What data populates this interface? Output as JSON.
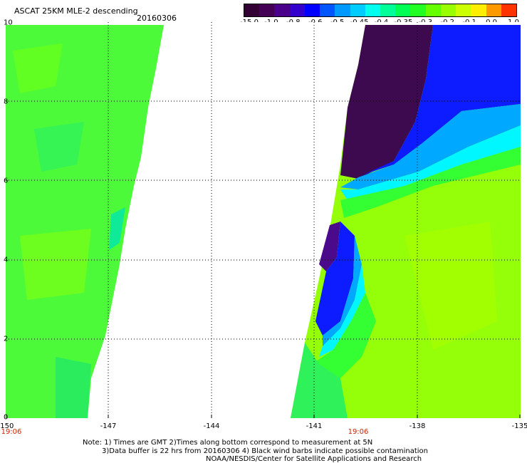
{
  "header": {
    "title": "ASCAT 25KM MLE-2 descending",
    "date": "20160306"
  },
  "colorbar": {
    "colors": [
      "#330033",
      "#440055",
      "#4a0088",
      "#3300cc",
      "#0000ff",
      "#0055ff",
      "#0099ff",
      "#00ccff",
      "#00ffee",
      "#00ff99",
      "#00ff55",
      "#22ff22",
      "#66ff00",
      "#99ff00",
      "#ccff00",
      "#ffee00",
      "#ff9900",
      "#ff3300"
    ],
    "labels": [
      "-15.0",
      "-1.0",
      "-0.8",
      "-0.6",
      "-0.5",
      "-0.45",
      "-0.4",
      "-0.35",
      "-0.3",
      "-0.2",
      "-0.1",
      "0.0",
      "1.0"
    ]
  },
  "map": {
    "x_ticks": [
      "-150",
      "-147",
      "-144",
      "-141",
      "-138",
      "-135"
    ],
    "y_ticks": [
      "0",
      "2",
      "4",
      "6",
      "8",
      "10"
    ],
    "time_labels": [
      "19:06",
      "19:06"
    ],
    "legend_colors": {
      "dark": "#3d0a4f",
      "purple": "#4b0a8c",
      "blue": "#0c1cff",
      "azure": "#00a8ff",
      "cyan": "#00f7ff",
      "green": "#33ff33",
      "lime": "#8cff10",
      "yellowgreen": "#a4ff00"
    }
  },
  "notes": [
    "Note: 1) Times are GMT 2)Times along bottom correspond to measurement at 5N",
    "3)Data buffer is 22 hrs from 20160306 4) Black wind barbs indicate possible contamination",
    "NOAA/NESDIS/Center for Satellite Applications and Research"
  ]
}
